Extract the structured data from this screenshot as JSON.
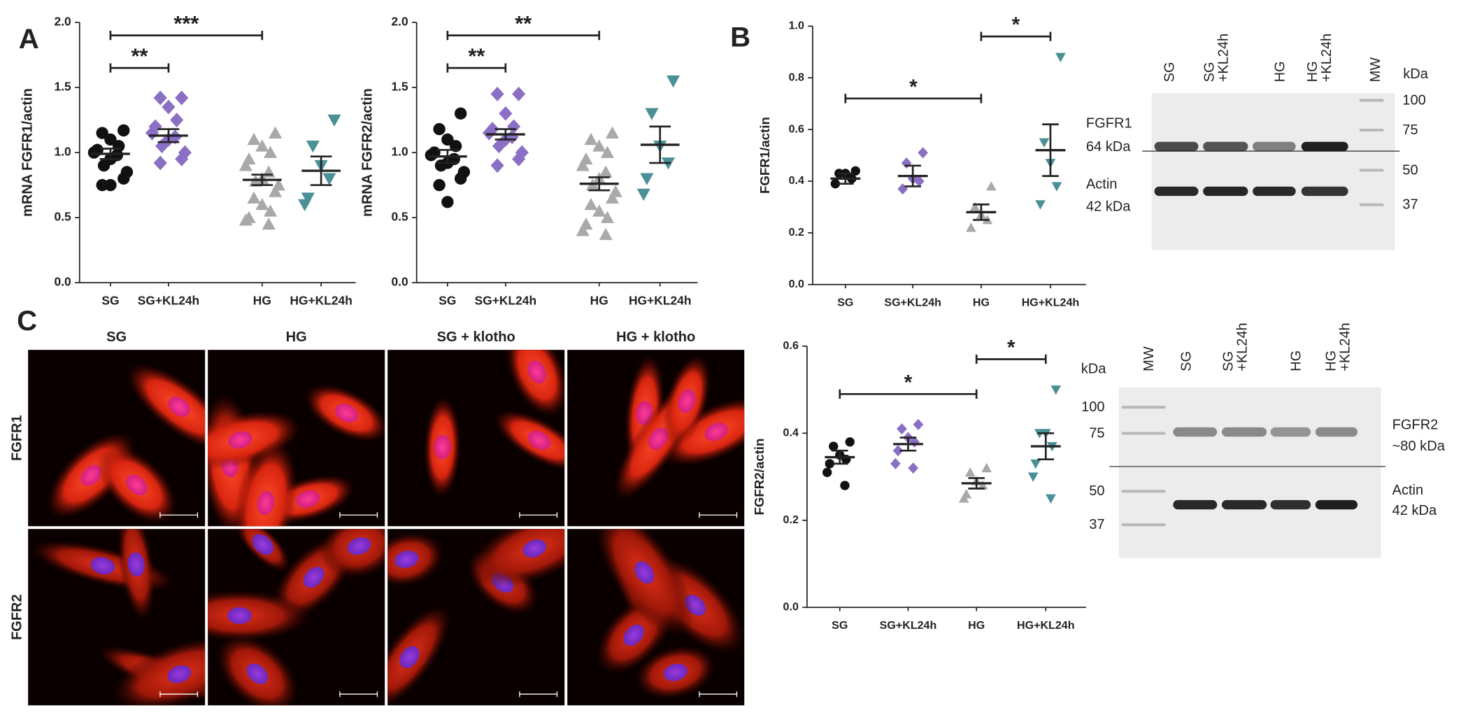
{
  "panel_labels": [
    "A",
    "B",
    "C"
  ],
  "chart_data": [
    {
      "type": "dotplot",
      "ylabel": "mRNA FGFR1/actin",
      "categories": [
        "SG",
        "SG+KL24h",
        "HG",
        "HG+KL24h"
      ],
      "ylim": [
        0,
        2
      ],
      "yticks": [
        {
          "value": 0,
          "label": "0.0"
        },
        {
          "value": 0.5,
          "label": "0.5"
        },
        {
          "value": 1,
          "label": "1.0"
        },
        {
          "value": 1.5,
          "label": "1.5"
        },
        {
          "value": 2,
          "label": "2.0"
        }
      ],
      "groups": [
        {
          "color": "#111111",
          "marker": "circle",
          "points": [
            1.17,
            1.15,
            1.1,
            1.05,
            1.02,
            1.0,
            0.98,
            0.95,
            0.9,
            0.85,
            0.8,
            0.75,
            0.75
          ],
          "mean": 0.99,
          "sem": 0.04
        },
        {
          "color": "#8a6fc4",
          "marker": "diamond",
          "points": [
            1.42,
            1.42,
            1.35,
            1.25,
            1.2,
            1.15,
            1.12,
            1.1,
            1.05,
            1.0,
            0.95,
            0.92
          ],
          "mean": 1.13,
          "sem": 0.05
        },
        {
          "color": "#a9a9a9",
          "marker": "triangle",
          "points": [
            1.15,
            1.1,
            1.05,
            1.0,
            0.95,
            0.9,
            0.85,
            0.8,
            0.78,
            0.75,
            0.7,
            0.65,
            0.6,
            0.55,
            0.5,
            0.48,
            0.45
          ],
          "mean": 0.79,
          "sem": 0.04
        },
        {
          "color": "#4a9096",
          "marker": "triangle-down",
          "points": [
            1.25,
            1.05,
            0.9,
            0.8,
            0.65,
            0.6
          ],
          "mean": 0.86,
          "sem": 0.11
        }
      ],
      "brackets": [
        {
          "from": 0,
          "to": 1,
          "y": 1.65,
          "label": "**"
        },
        {
          "from": 0,
          "to": 2,
          "y": 1.9,
          "label": "***"
        }
      ]
    },
    {
      "type": "dotplot",
      "ylabel": "mRNA FGFR2/actin",
      "categories": [
        "SG",
        "SG+KL24h",
        "HG",
        "HG+KL24h"
      ],
      "ylim": [
        0,
        2
      ],
      "yticks": [
        {
          "value": 0,
          "label": "0.0"
        },
        {
          "value": 0.5,
          "label": "0.5"
        },
        {
          "value": 1,
          "label": "1.0"
        },
        {
          "value": 1.5,
          "label": "1.5"
        },
        {
          "value": 2,
          "label": "2.0"
        }
      ],
      "groups": [
        {
          "color": "#111111",
          "marker": "circle",
          "points": [
            1.3,
            1.18,
            1.1,
            1.05,
            1.0,
            0.98,
            0.95,
            0.92,
            0.9,
            0.85,
            0.8,
            0.75,
            0.62
          ],
          "mean": 0.97,
          "sem": 0.05
        },
        {
          "color": "#8a6fc4",
          "marker": "diamond",
          "points": [
            1.45,
            1.45,
            1.3,
            1.2,
            1.18,
            1.15,
            1.12,
            1.1,
            1.05,
            1.0,
            0.95,
            0.9
          ],
          "mean": 1.14,
          "sem": 0.04
        },
        {
          "color": "#a9a9a9",
          "marker": "triangle",
          "points": [
            1.15,
            1.1,
            1.05,
            1.0,
            0.95,
            0.9,
            0.85,
            0.8,
            0.75,
            0.7,
            0.65,
            0.6,
            0.55,
            0.5,
            0.45,
            0.4,
            0.37
          ],
          "mean": 0.76,
          "sem": 0.05
        },
        {
          "color": "#4a9096",
          "marker": "triangle-down",
          "points": [
            1.55,
            1.3,
            1.05,
            0.92,
            0.8,
            0.68
          ],
          "mean": 1.06,
          "sem": 0.14
        }
      ],
      "brackets": [
        {
          "from": 0,
          "to": 1,
          "y": 1.65,
          "label": "**"
        },
        {
          "from": 0,
          "to": 2,
          "y": 1.9,
          "label": "**"
        }
      ]
    },
    {
      "type": "dotplot",
      "ylabel": "FGFR1/actin",
      "categories": [
        "SG",
        "SG+KL24h",
        "HG",
        "HG+KL24h"
      ],
      "ylim": [
        0,
        1
      ],
      "yticks": [
        {
          "value": 0,
          "label": "0.0"
        },
        0.2,
        0.4,
        0.6,
        0.8,
        {
          "value": 1,
          "label": "1.0"
        }
      ],
      "groups": [
        {
          "color": "#111111",
          "marker": "circle",
          "points": [
            0.44,
            0.43,
            0.43,
            0.41,
            0.39
          ],
          "mean": 0.41,
          "sem": 0.02
        },
        {
          "color": "#8a6fc4",
          "marker": "diamond",
          "points": [
            0.51,
            0.47,
            0.41,
            0.4,
            0.37
          ],
          "mean": 0.42,
          "sem": 0.04
        },
        {
          "color": "#a9a9a9",
          "marker": "triangle",
          "points": [
            0.38,
            0.3,
            0.27,
            0.25,
            0.22
          ],
          "mean": 0.28,
          "sem": 0.03
        },
        {
          "color": "#4a9096",
          "marker": "triangle-down",
          "points": [
            0.88,
            0.55,
            0.47,
            0.38,
            0.31
          ],
          "mean": 0.52,
          "sem": 0.1
        }
      ],
      "brackets": [
        {
          "from": 0,
          "to": 2,
          "y": 0.72,
          "label": "*"
        },
        {
          "from": 2,
          "to": 3,
          "y": 0.96,
          "label": "*"
        }
      ]
    },
    {
      "type": "dotplot",
      "ylabel": "FGFR2/actin",
      "categories": [
        "SG",
        "SG+KL24h",
        "HG",
        "HG+KL24h"
      ],
      "ylim": [
        0,
        0.6
      ],
      "yticks": [
        {
          "value": 0,
          "label": "0.0"
        },
        0.2,
        0.4,
        0.6
      ],
      "groups": [
        {
          "color": "#111111",
          "marker": "circle",
          "points": [
            0.38,
            0.37,
            0.35,
            0.34,
            0.33,
            0.31,
            0.28
          ],
          "mean": 0.345,
          "sem": 0.015
        },
        {
          "color": "#8a6fc4",
          "marker": "diamond",
          "points": [
            0.42,
            0.41,
            0.39,
            0.38,
            0.36,
            0.33,
            0.32
          ],
          "mean": 0.375,
          "sem": 0.015
        },
        {
          "color": "#a9a9a9",
          "marker": "triangle",
          "points": [
            0.32,
            0.31,
            0.29,
            0.28,
            0.26,
            0.25
          ],
          "mean": 0.285,
          "sem": 0.012
        },
        {
          "color": "#4a9096",
          "marker": "triangle-down",
          "points": [
            0.5,
            0.4,
            0.4,
            0.37,
            0.33,
            0.3,
            0.25
          ],
          "mean": 0.37,
          "sem": 0.03
        }
      ],
      "brackets": [
        {
          "from": 0,
          "to": 2,
          "y": 0.49,
          "label": "*"
        },
        {
          "from": 2,
          "to": 3,
          "y": 0.57,
          "label": "*"
        }
      ]
    }
  ],
  "blots": [
    {
      "lanes": [
        [
          "SG"
        ],
        [
          "SG",
          "+KL24h"
        ],
        [
          "HG"
        ],
        [
          "HG",
          "+KL24h"
        ],
        [
          "MW"
        ]
      ],
      "unit": "kDa",
      "mw": [
        "100",
        "75",
        "50",
        "37"
      ],
      "proteins": [
        [
          "FGFR1",
          "64 kDa"
        ],
        [
          "Actin",
          "42 kDa"
        ]
      ]
    },
    {
      "lanes": [
        [
          "MW"
        ],
        [
          "SG"
        ],
        [
          "SG",
          "+KL24h"
        ],
        [
          "HG"
        ],
        [
          "HG",
          "+KL24h"
        ]
      ],
      "unit": "kDa",
      "mw": [
        "100",
        "75",
        "50",
        "37"
      ],
      "proteins": [
        [
          "FGFR2",
          "~80 kDa"
        ],
        [
          "Actin",
          "42 kDa"
        ]
      ]
    }
  ],
  "micrographs": {
    "columns": [
      "SG",
      "HG",
      "SG + klotho",
      "HG + klotho"
    ],
    "rows": [
      "FGFR1",
      "FGFR2"
    ]
  }
}
